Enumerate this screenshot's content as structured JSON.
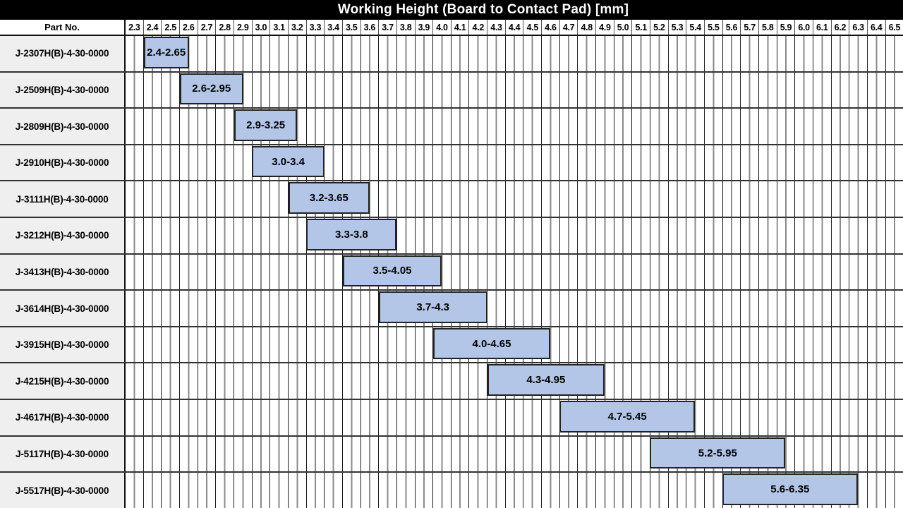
{
  "title": "Working Height (Board to Contact Pad) [mm]",
  "part_no_header": "Part No.",
  "colors": {
    "title_bg": "#000000",
    "title_fg": "#ffffff",
    "bar_fill": "#b4c6e7",
    "bar_border": "#222222",
    "row_label_bg": "#efefef",
    "grid_major": "#1a1a1a",
    "grid_minor": "#8a8a8a",
    "row_separator": "#333333"
  },
  "chart_data": {
    "type": "bar",
    "variant": "horizontal-range-gantt",
    "title": "Working Height (Board to Contact Pad) [mm]",
    "row_header_label": "Part No.",
    "x_axis": {
      "min": 2.3,
      "max": 6.6,
      "major_step": 0.1,
      "minor_step": 0.05,
      "tick_labels": [
        "2.3",
        "2.4",
        "2.5",
        "2.6",
        "2.7",
        "2.8",
        "2.9",
        "3.0",
        "3.1",
        "3.2",
        "3.3",
        "3.4",
        "3.5",
        "3.6",
        "3.7",
        "3.8",
        "3.9",
        "4.0",
        "4.1",
        "4.2",
        "4.3",
        "4.4",
        "4.5",
        "4.6",
        "4.7",
        "4.8",
        "4.9",
        "5.0",
        "5.1",
        "5.2",
        "5.3",
        "5.4",
        "5.5",
        "5.6",
        "5.7",
        "5.8",
        "5.9",
        "6.0",
        "6.1",
        "6.2",
        "6.3",
        "6.4",
        "6.5"
      ]
    },
    "grid": {
      "vertical_major": true,
      "vertical_minor": true,
      "horizontal": "row-separators"
    },
    "legend": "none",
    "rows": [
      {
        "part_no": "J-2307H(B)-4-30-0000",
        "range_label": "2.4-2.65",
        "start": 2.4,
        "end": 2.65
      },
      {
        "part_no": "J-2509H(B)-4-30-0000",
        "range_label": "2.6-2.95",
        "start": 2.6,
        "end": 2.95
      },
      {
        "part_no": "J-2809H(B)-4-30-0000",
        "range_label": "2.9-3.25",
        "start": 2.9,
        "end": 3.25
      },
      {
        "part_no": "J-2910H(B)-4-30-0000",
        "range_label": "3.0-3.4",
        "start": 3.0,
        "end": 3.4
      },
      {
        "part_no": "J-3111H(B)-4-30-0000",
        "range_label": "3.2-3.65",
        "start": 3.2,
        "end": 3.65
      },
      {
        "part_no": "J-3212H(B)-4-30-0000",
        "range_label": "3.3-3.8",
        "start": 3.3,
        "end": 3.8
      },
      {
        "part_no": "J-3413H(B)-4-30-0000",
        "range_label": "3.5-4.05",
        "start": 3.5,
        "end": 4.05
      },
      {
        "part_no": "J-3614H(B)-4-30-0000",
        "range_label": "3.7-4.3",
        "start": 3.7,
        "end": 4.3
      },
      {
        "part_no": "J-3915H(B)-4-30-0000",
        "range_label": "4.0-4.65",
        "start": 4.0,
        "end": 4.65
      },
      {
        "part_no": "J-4215H(B)-4-30-0000",
        "range_label": "4.3-4.95",
        "start": 4.3,
        "end": 4.95
      },
      {
        "part_no": "J-4617H(B)-4-30-0000",
        "range_label": "4.7-5.45",
        "start": 4.7,
        "end": 5.45
      },
      {
        "part_no": "J-5117H(B)-4-30-0000",
        "range_label": "5.2-5.95",
        "start": 5.2,
        "end": 5.95
      },
      {
        "part_no": "J-5517H(B)-4-30-0000",
        "range_label": "5.6-6.35",
        "start": 5.6,
        "end": 6.35
      }
    ]
  }
}
